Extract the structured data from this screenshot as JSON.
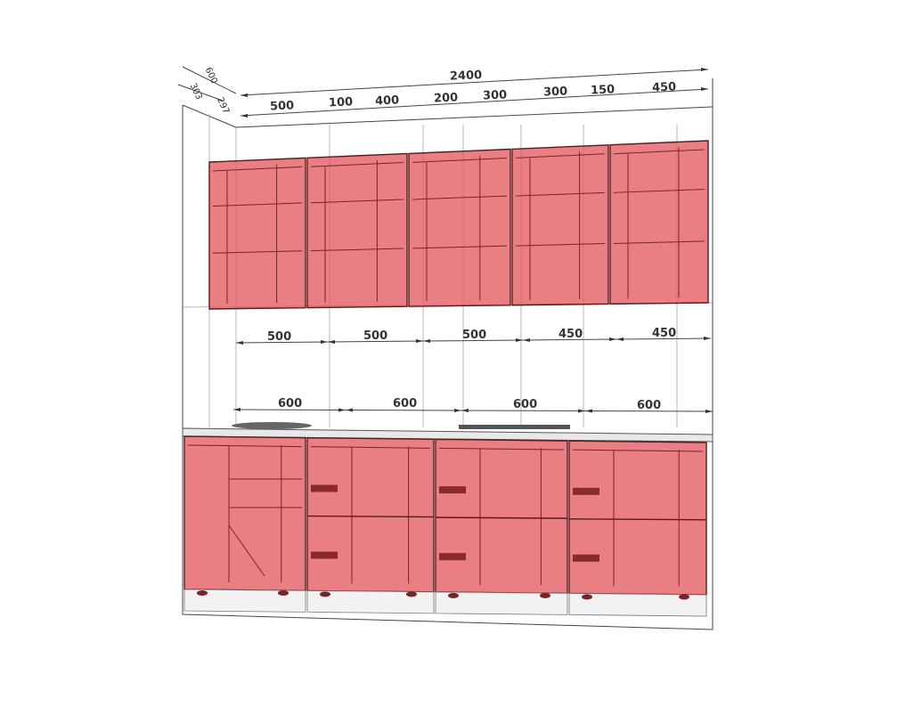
{
  "drawing": {
    "overall_width": "2400",
    "depth_labels": [
      "600",
      "303",
      "297"
    ],
    "top_segments": [
      "500",
      "100",
      "400",
      "200",
      "300",
      "300",
      "150",
      "450"
    ],
    "upper_cabinet_widths": [
      "500",
      "500",
      "500",
      "450",
      "450"
    ],
    "lower_cabinet_widths": [
      "600",
      "600",
      "600",
      "600"
    ],
    "cabinet_color": "#e35a60"
  }
}
